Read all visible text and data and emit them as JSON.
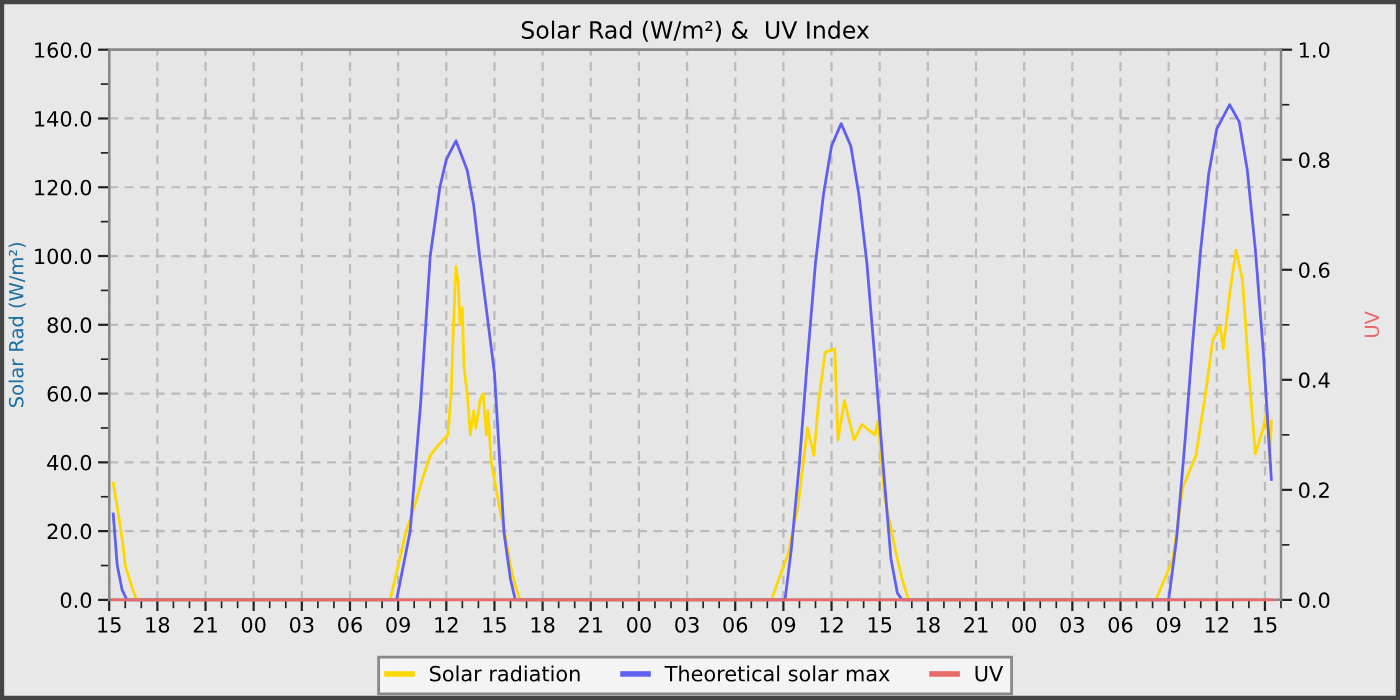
{
  "chart_data": {
    "type": "line",
    "title": "Solar Rad (W/m²) &  UV Index",
    "ylabel": "Solar Rad (W/m²)",
    "y2label": "UV",
    "xlim": [
      15,
      88
    ],
    "ylim": [
      0,
      160
    ],
    "yticks": [
      {
        "value": 0,
        "label": "0.0"
      },
      {
        "value": 20,
        "label": "20.0"
      },
      {
        "value": 40,
        "label": "40.0"
      },
      {
        "value": 60,
        "label": "60.0"
      },
      {
        "value": 80,
        "label": "80.0"
      },
      {
        "value": 100,
        "label": "100.0"
      },
      {
        "value": 120,
        "label": "120.0"
      },
      {
        "value": 140,
        "label": "140.0"
      },
      {
        "value": 160,
        "label": "160.0"
      }
    ],
    "y2lim": [
      0,
      1
    ],
    "y2ticks": [
      {
        "value": 0,
        "label": "0.0"
      },
      {
        "value": 0.2,
        "label": "0.2"
      },
      {
        "value": 0.4,
        "label": "0.4"
      },
      {
        "value": 0.6,
        "label": "0.6"
      },
      {
        "value": 0.8,
        "label": "0.8"
      },
      {
        "value": 1,
        "label": "1.0"
      }
    ],
    "xticks": [
      {
        "value": 15,
        "label": "15"
      },
      {
        "value": 18,
        "label": "18"
      },
      {
        "value": 21,
        "label": "21"
      },
      {
        "value": 24,
        "label": "00"
      },
      {
        "value": 27,
        "label": "03"
      },
      {
        "value": 30,
        "label": "06"
      },
      {
        "value": 33,
        "label": "09"
      },
      {
        "value": 36,
        "label": "12"
      },
      {
        "value": 39,
        "label": "15"
      },
      {
        "value": 42,
        "label": "18"
      },
      {
        "value": 45,
        "label": "21"
      },
      {
        "value": 48,
        "label": "00"
      },
      {
        "value": 51,
        "label": "03"
      },
      {
        "value": 54,
        "label": "06"
      },
      {
        "value": 57,
        "label": "09"
      },
      {
        "value": 60,
        "label": "12"
      },
      {
        "value": 63,
        "label": "15"
      },
      {
        "value": 66,
        "label": "18"
      },
      {
        "value": 69,
        "label": "21"
      },
      {
        "value": 72,
        "label": "00"
      },
      {
        "value": 75,
        "label": "03"
      },
      {
        "value": 78,
        "label": "06"
      },
      {
        "value": 81,
        "label": "09"
      },
      {
        "value": 84,
        "label": "12"
      },
      {
        "value": 87,
        "label": "15"
      }
    ],
    "grid": true,
    "legend": "bottom",
    "series": [
      {
        "name": "Solar radiation",
        "color": "#ffd700",
        "x": [
          15.25,
          15.5,
          15.8,
          16.0,
          16.4,
          16.7,
          32.5,
          33.0,
          33.5,
          34.0,
          34.5,
          35.0,
          35.5,
          35.9,
          36.1,
          36.3,
          36.45,
          36.6,
          36.75,
          36.85,
          37.0,
          37.1,
          37.3,
          37.5,
          37.7,
          37.85,
          38.1,
          38.3,
          38.5,
          38.6,
          38.8,
          39.0,
          39.2,
          39.4,
          39.7,
          40.0,
          40.3,
          40.6,
          56.25,
          57.3,
          57.9,
          58.5,
          58.9,
          59.2,
          59.6,
          60.2,
          60.4,
          60.8,
          61.4,
          61.9,
          62.7,
          62.9,
          63.3,
          64.0,
          64.4,
          64.8,
          80.2,
          81.25,
          81.9,
          82.7,
          83.3,
          83.75,
          84.2,
          84.4,
          84.8,
          85.2,
          85.6,
          86.0,
          86.4,
          86.9,
          87.1,
          87.3,
          87.4
        ],
        "values": [
          34,
          27,
          18,
          10,
          4,
          0,
          0,
          10,
          20,
          27,
          35,
          42,
          45,
          47,
          48,
          60,
          80,
          97,
          92,
          80,
          85,
          68,
          60,
          48,
          55,
          50,
          58,
          60,
          48,
          55,
          40,
          35,
          30,
          25,
          18,
          10,
          4,
          0,
          0,
          13.5,
          27,
          50,
          42,
          58,
          72,
          73,
          46.5,
          58,
          46.5,
          51,
          48,
          52,
          30,
          14,
          6,
          0,
          0,
          11.6,
          33,
          42,
          60,
          75.6,
          79.5,
          73,
          89,
          101.7,
          93,
          66,
          42.5,
          50,
          55,
          40.7,
          52
        ]
      },
      {
        "name": "Theoretical solar max",
        "color": "#6060f0",
        "x": [
          15.25,
          15.5,
          15.8,
          16.1,
          32.9,
          33.75,
          34.4,
          35.0,
          35.6,
          36.0,
          36.6,
          37.3,
          37.7,
          38.1,
          39.0,
          39.6,
          40.0,
          40.3,
          57.1,
          57.5,
          58.0,
          58.5,
          59.0,
          59.5,
          60.0,
          60.6,
          61.2,
          61.7,
          62.2,
          62.7,
          63.2,
          63.7,
          64.1,
          64.4,
          81.0,
          81.5,
          82.0,
          82.5,
          83.0,
          83.5,
          84.0,
          84.8,
          85.4,
          85.9,
          86.4,
          86.9,
          87.2,
          87.4
        ],
        "values": [
          25,
          10,
          3,
          0,
          0,
          20,
          57,
          100,
          120,
          128,
          133.5,
          125,
          115,
          99,
          66,
          19.4,
          6,
          0,
          0,
          15,
          40,
          70,
          98,
          118,
          132,
          138.5,
          132,
          118,
          98,
          70,
          40,
          12,
          2,
          0,
          0,
          18,
          45,
          75,
          102,
          124,
          137,
          144,
          139,
          125,
          102,
          72,
          50,
          35
        ]
      },
      {
        "name": "UV",
        "color": "#e86a6a",
        "axis": "y2",
        "x": [
          15.25,
          87.5
        ],
        "values": [
          0,
          0
        ]
      }
    ]
  }
}
